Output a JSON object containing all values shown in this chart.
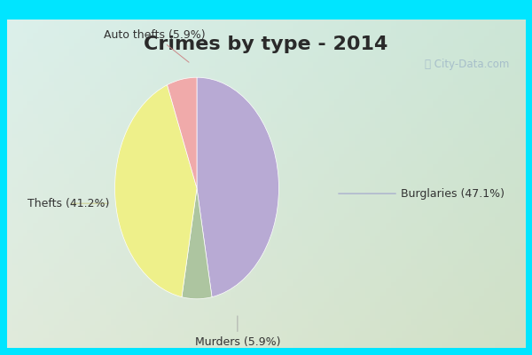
{
  "title": "Crimes by type - 2014",
  "slices": [
    {
      "label": "Burglaries (47.1%)",
      "value": 47.1,
      "color": "#b8aad4"
    },
    {
      "label": "Murders (5.9%)",
      "value": 5.9,
      "color": "#adc5a0"
    },
    {
      "label": "Thefts (41.2%)",
      "value": 41.2,
      "color": "#eef08a"
    },
    {
      "label": "Auto thefts (5.9%)",
      "value": 5.9,
      "color": "#f0aaaa"
    }
  ],
  "border_color": "#00e5ff",
  "border_width": 8,
  "bg_color_top_left": "#daf0ec",
  "bg_color_bottom_right": "#c8e8d0",
  "title_fontsize": 16,
  "label_fontsize": 9,
  "watermark": "ⓘ City-Data.com",
  "startangle": 90
}
